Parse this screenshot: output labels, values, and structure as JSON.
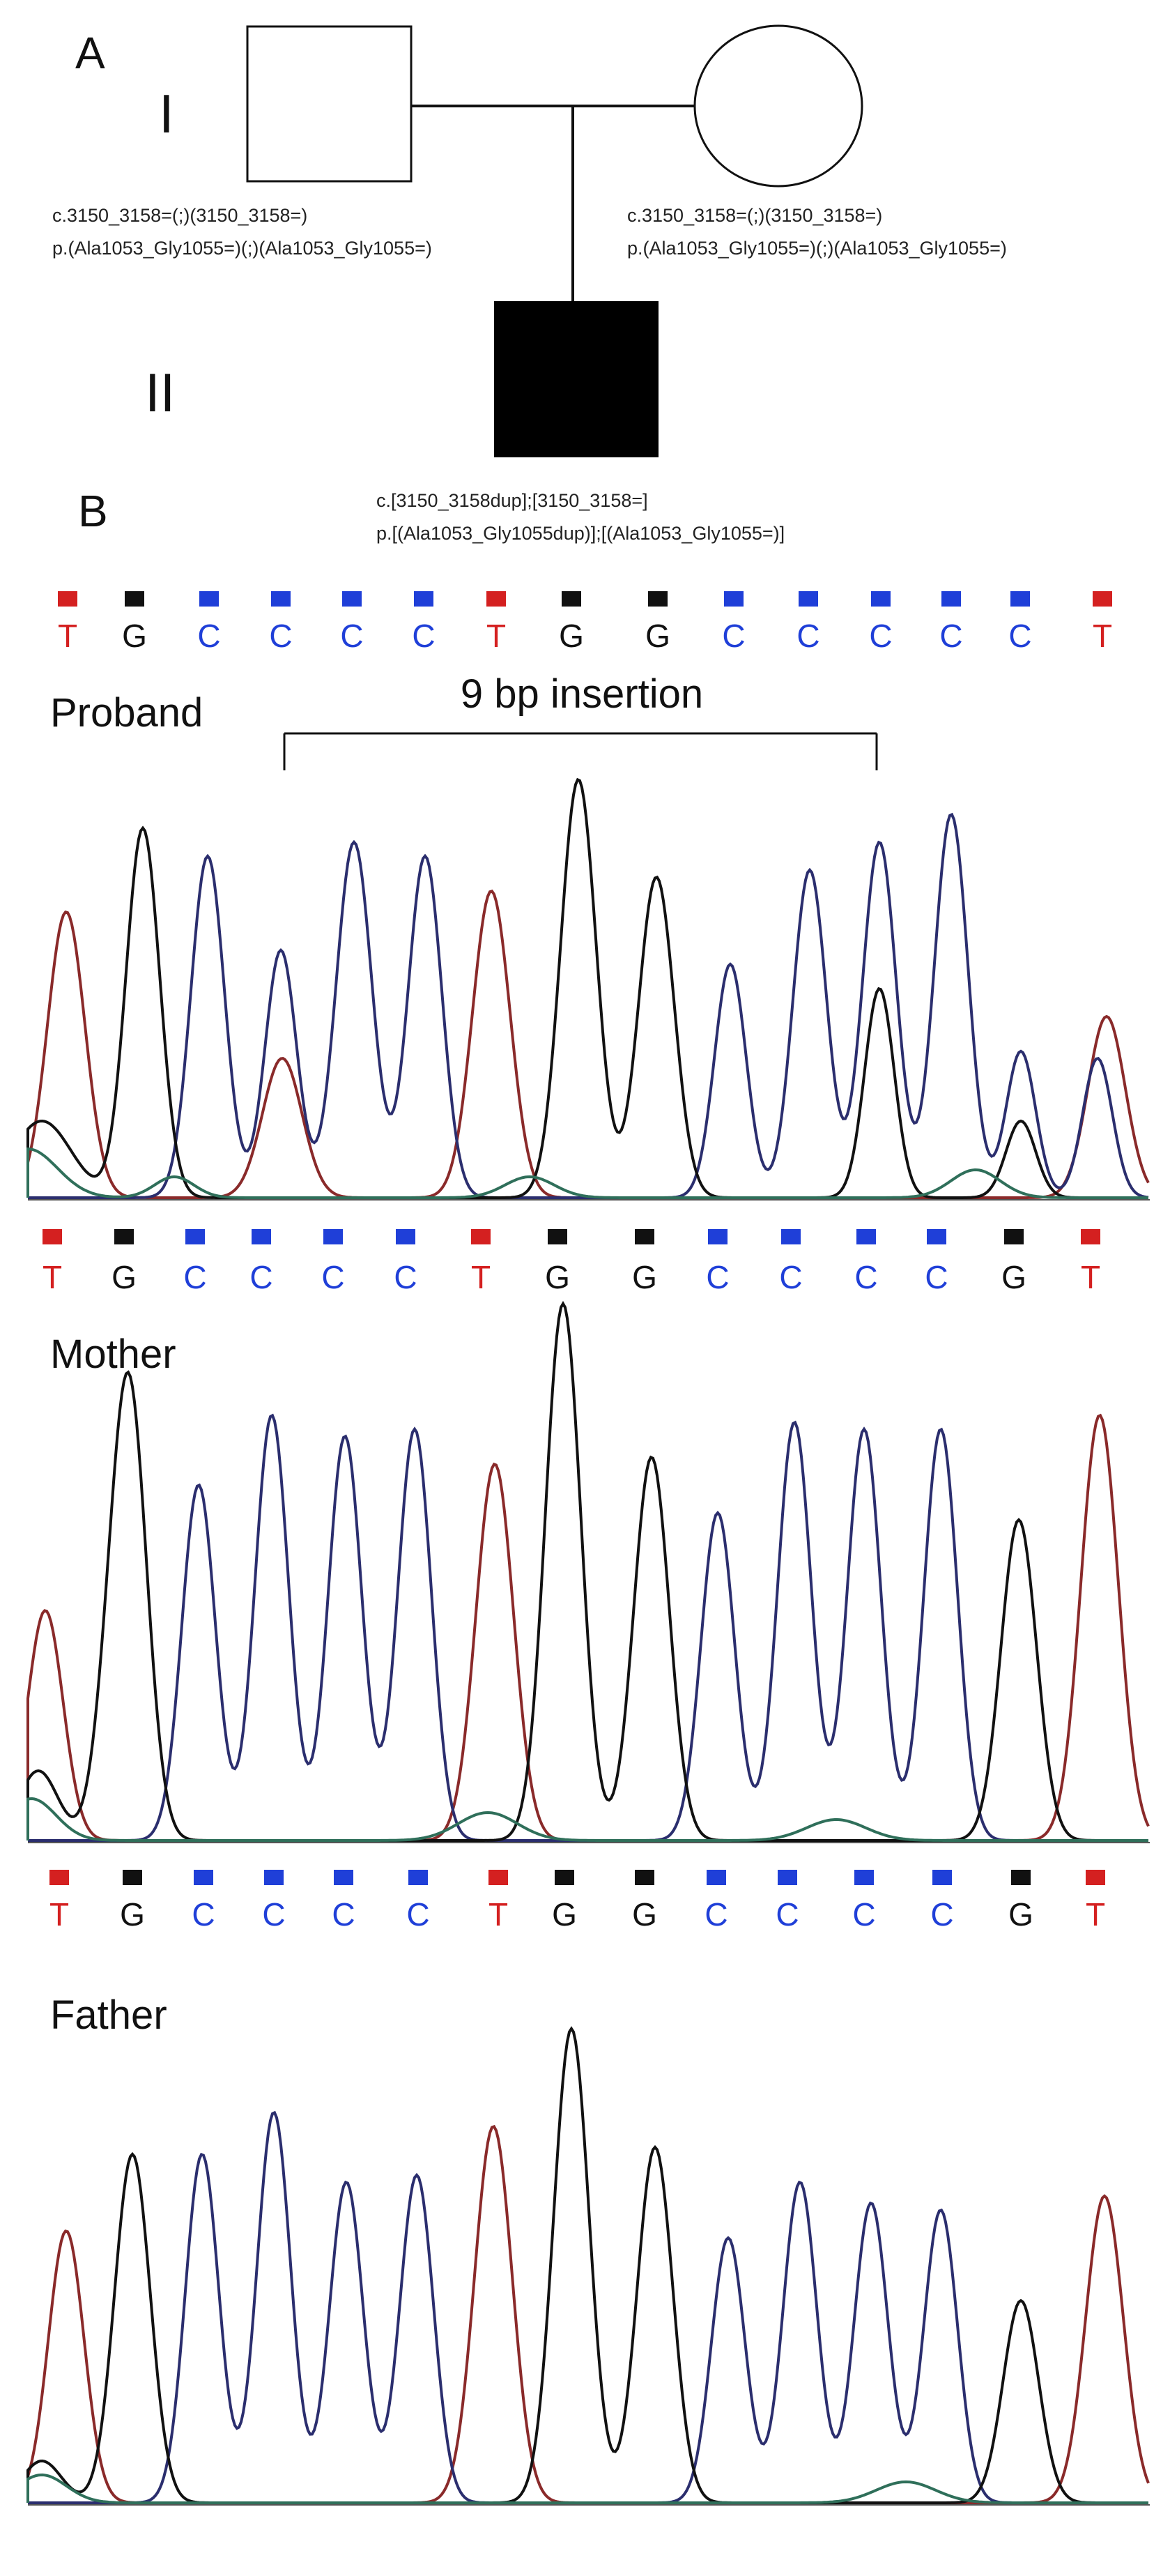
{
  "panel_a": {
    "label": "A",
    "generation_1": "I",
    "generation_2": "II",
    "father_genotype": {
      "cdna": "c.3150_3158=(;)(3150_3158=)",
      "protein": "p.(Ala1053_Gly1055=)(;)(Ala1053_Gly1055=)"
    },
    "mother_genotype": {
      "cdna": "c.3150_3158=(;)(3150_3158=)",
      "protein": "p.(Ala1053_Gly1055=)(;)(Ala1053_Gly1055=)"
    },
    "proband_genotype": {
      "cdna": "c.[3150_3158dup];[3150_3158=]",
      "protein": "p.[(Ala1053_Gly1055dup)];[(Ala1053_Gly1055=)]"
    }
  },
  "panel_b": {
    "label": "B",
    "reference_bases": [
      "T",
      "G",
      "C",
      "C",
      "C",
      "C",
      "T",
      "G",
      "G",
      "C",
      "C",
      "C",
      "C",
      "C",
      "T"
    ],
    "insertion_label": "9 bp insertion",
    "colors": {
      "T": "#d42020",
      "G": "#111111",
      "C": "#1f3fd8",
      "trace_blue": "#2b2e6e",
      "trace_red": "#8a2a2a",
      "trace_green": "#2f6f5a",
      "trace_black": "#111111"
    },
    "proband": {
      "label": "Proband",
      "bases": [
        "T",
        "G",
        "C",
        "C",
        "C",
        "C",
        "T",
        "G",
        "G",
        "C",
        "C",
        "C",
        "C",
        "G",
        "T"
      ]
    },
    "mother": {
      "label": "Mother",
      "bases": [
        "T",
        "G",
        "C",
        "C",
        "C",
        "C",
        "T",
        "G",
        "G",
        "C",
        "C",
        "C",
        "C",
        "G",
        "T"
      ]
    },
    "father": {
      "label": "Father"
    }
  }
}
